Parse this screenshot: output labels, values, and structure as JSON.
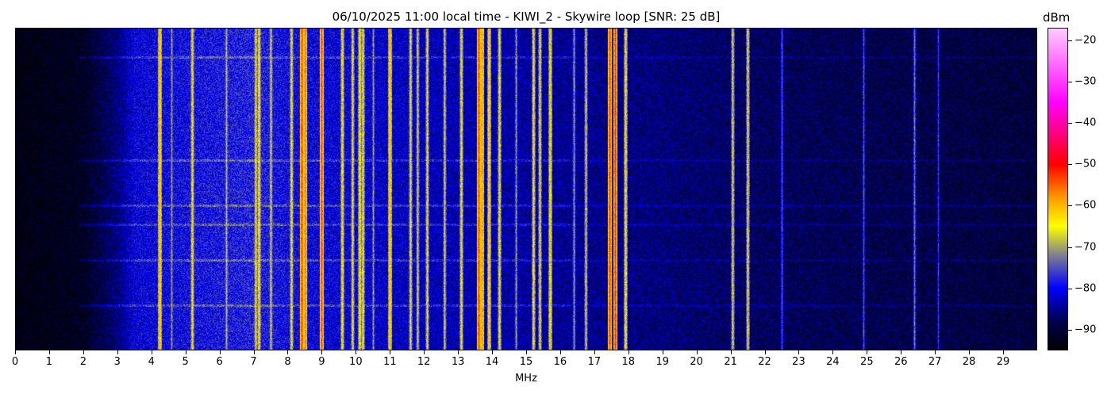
{
  "chart_data": {
    "type": "heatmap",
    "title": "06/10/2025 11:00 local time - KIWI_2 - Skywire loop [SNR: 25 dB]",
    "xlabel": "MHz",
    "ylabel": "",
    "xlim": [
      0,
      30
    ],
    "x_ticks": [
      "0",
      "1",
      "2",
      "3",
      "4",
      "5",
      "6",
      "7",
      "8",
      "9",
      "10",
      "11",
      "12",
      "13",
      "14",
      "15",
      "16",
      "17",
      "18",
      "19",
      "20",
      "21",
      "22",
      "23",
      "24",
      "25",
      "26",
      "27",
      "28",
      "29"
    ],
    "colorbar": {
      "label": "dBm",
      "range": [
        -95,
        -17
      ],
      "ticks": [
        "-20",
        "-30",
        "-40",
        "-50",
        "-60",
        "-70",
        "-80",
        "-90"
      ],
      "colormap": [
        {
          "value": -95,
          "color": "#000000"
        },
        {
          "value": -88,
          "color": "#000050"
        },
        {
          "value": -80,
          "color": "#0000ff"
        },
        {
          "value": -72,
          "color": "#808090"
        },
        {
          "value": -65,
          "color": "#ffff00"
        },
        {
          "value": -58,
          "color": "#ff9900"
        },
        {
          "value": -50,
          "color": "#ff0000"
        },
        {
          "value": -35,
          "color": "#ff00ff"
        },
        {
          "value": -17,
          "color": "#ffccff"
        }
      ]
    },
    "noise_floor_dBm": [
      {
        "mhz": 0,
        "level": -94
      },
      {
        "mhz": 2,
        "level": -92
      },
      {
        "mhz": 3,
        "level": -86
      },
      {
        "mhz": 3.5,
        "level": -81
      },
      {
        "mhz": 7,
        "level": -78
      },
      {
        "mhz": 8,
        "level": -80
      },
      {
        "mhz": 12,
        "level": -83
      },
      {
        "mhz": 16,
        "level": -85
      },
      {
        "mhz": 22,
        "level": -88
      },
      {
        "mhz": 30,
        "level": -90
      }
    ],
    "signals": [
      {
        "mhz": 4.25,
        "level": -58
      },
      {
        "mhz": 4.6,
        "level": -70
      },
      {
        "mhz": 5.2,
        "level": -63
      },
      {
        "mhz": 6.2,
        "level": -68
      },
      {
        "mhz": 7.05,
        "level": -64
      },
      {
        "mhz": 7.15,
        "level": -62
      },
      {
        "mhz": 7.5,
        "level": -66
      },
      {
        "mhz": 8.1,
        "level": -63
      },
      {
        "mhz": 8.4,
        "level": -52
      },
      {
        "mhz": 8.5,
        "level": -55
      },
      {
        "mhz": 9.0,
        "level": -52
      },
      {
        "mhz": 9.6,
        "level": -62
      },
      {
        "mhz": 9.9,
        "level": -64
      },
      {
        "mhz": 10.1,
        "level": -61
      },
      {
        "mhz": 10.2,
        "level": -63
      },
      {
        "mhz": 10.5,
        "level": -70
      },
      {
        "mhz": 11.0,
        "level": -58
      },
      {
        "mhz": 11.6,
        "level": -64
      },
      {
        "mhz": 11.8,
        "level": -66
      },
      {
        "mhz": 12.1,
        "level": -64
      },
      {
        "mhz": 12.6,
        "level": -66
      },
      {
        "mhz": 13.1,
        "level": -63
      },
      {
        "mhz": 13.6,
        "level": -52
      },
      {
        "mhz": 13.7,
        "level": -56
      },
      {
        "mhz": 13.9,
        "level": -60
      },
      {
        "mhz": 14.2,
        "level": -63
      },
      {
        "mhz": 14.7,
        "level": -70
      },
      {
        "mhz": 15.2,
        "level": -63
      },
      {
        "mhz": 15.4,
        "level": -64
      },
      {
        "mhz": 15.7,
        "level": -61
      },
      {
        "mhz": 16.4,
        "level": -70
      },
      {
        "mhz": 16.75,
        "level": -66
      },
      {
        "mhz": 17.45,
        "level": -52
      },
      {
        "mhz": 17.6,
        "level": -51
      },
      {
        "mhz": 17.9,
        "level": -62
      },
      {
        "mhz": 21.05,
        "level": -65
      },
      {
        "mhz": 21.5,
        "level": -64
      },
      {
        "mhz": 22.5,
        "level": -74
      },
      {
        "mhz": 24.9,
        "level": -74
      },
      {
        "mhz": 26.4,
        "level": -72
      },
      {
        "mhz": 27.1,
        "level": -76
      }
    ]
  }
}
